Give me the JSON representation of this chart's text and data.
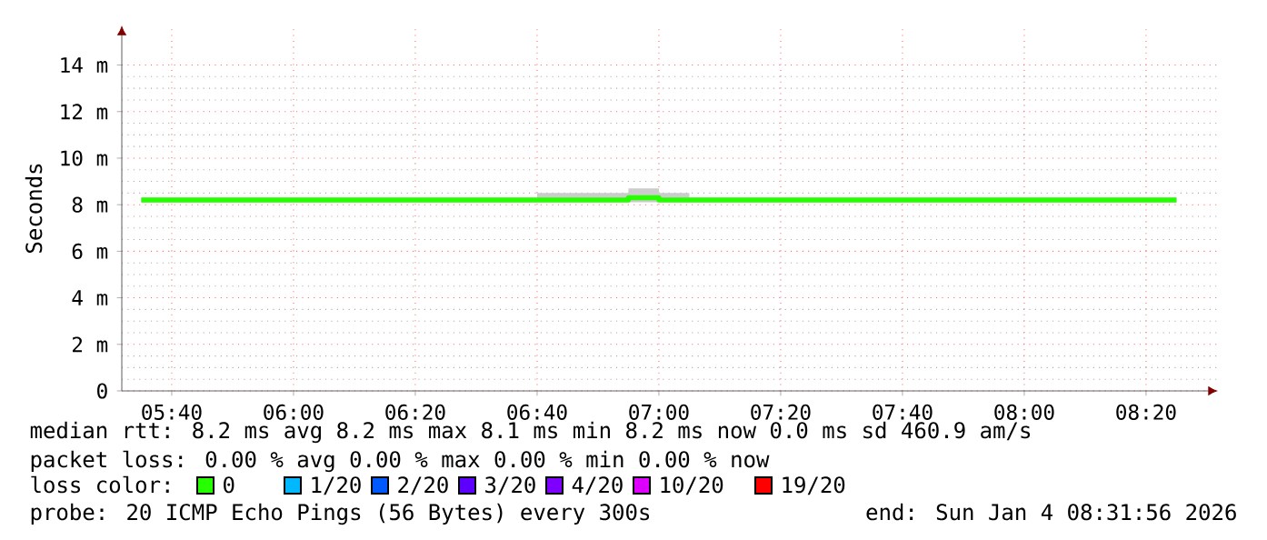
{
  "chart_data": {
    "type": "step",
    "ylabel": "Seconds",
    "x": [
      5.5833,
      5.6667,
      5.75,
      5.8333,
      5.9167,
      6,
      6.0833,
      6.1667,
      6.25,
      6.3333,
      6.4167,
      6.5,
      6.5833,
      6.6667,
      6.75,
      6.8333,
      6.9167,
      7,
      7.0833,
      7.1667,
      7.25,
      7.3333,
      7.4167,
      7.5,
      7.5833,
      7.6667,
      7.75,
      7.8333,
      7.9167,
      8,
      8.0833,
      8.1667,
      8.25,
      8.3333,
      8.4167
    ],
    "series": [
      {
        "name": "0",
        "color": "#26ff00",
        "values": [
          8.2,
          8.2,
          8.2,
          8.2,
          8.2,
          8.2,
          8.2,
          8.2,
          8.2,
          8.2,
          8.2,
          8.2,
          8.2,
          8.2,
          8.2,
          8.2,
          8.3,
          8.2,
          8.2,
          8.2,
          8.2,
          8.2,
          8.2,
          8.2,
          8.2,
          8.2,
          8.2,
          8.2,
          8.2,
          8.2,
          8.2,
          8.2,
          8.2,
          8.2,
          8.2
        ],
        "lower": [
          8.1,
          8.1,
          8.1,
          8.1,
          8.1,
          8.1,
          8.1,
          8.1,
          8.1,
          8.1,
          8.1,
          8.1,
          8.1,
          8.1,
          8.1,
          8.1,
          8.1,
          8.1,
          8.1,
          8.1,
          8.1,
          8.1,
          8.1,
          8.1,
          8.1,
          8.1,
          8.1,
          8.1,
          8.1,
          8.1,
          8.1,
          8.1,
          8.1,
          8.1,
          8.1
        ],
        "upper": [
          8.3,
          8.3,
          8.3,
          8.3,
          8.3,
          8.3,
          8.3,
          8.3,
          8.3,
          8.3,
          8.3,
          8.3,
          8.3,
          8.5,
          8.5,
          8.5,
          8.7,
          8.5,
          8.3,
          8.3,
          8.3,
          8.3,
          8.3,
          8.3,
          8.3,
          8.3,
          8.3,
          8.3,
          8.3,
          8.3,
          8.3,
          8.3,
          8.3,
          8.3,
          8.3
        ]
      },
      {
        "name": "1/20",
        "color": "#00b8ff",
        "values": [
          null,
          null,
          null,
          null,
          null,
          null,
          null,
          null,
          null,
          null,
          null,
          null,
          null,
          null,
          null,
          null,
          null,
          null,
          null,
          null,
          null,
          null,
          null,
          null,
          null,
          null,
          null,
          null,
          null,
          null,
          null,
          null,
          null,
          null,
          null
        ]
      },
      {
        "name": "2/20",
        "color": "#0059ff",
        "values": [
          null,
          null,
          null,
          null,
          null,
          null,
          null,
          null,
          null,
          null,
          null,
          null,
          null,
          null,
          null,
          null,
          null,
          null,
          null,
          null,
          null,
          null,
          null,
          null,
          null,
          null,
          null,
          null,
          null,
          null,
          null,
          null,
          null,
          null,
          null
        ]
      },
      {
        "name": "3/20",
        "color": "#5e00ff",
        "values": [
          null,
          null,
          null,
          null,
          null,
          null,
          null,
          null,
          null,
          null,
          null,
          null,
          null,
          null,
          null,
          null,
          null,
          null,
          null,
          null,
          null,
          null,
          null,
          null,
          null,
          null,
          null,
          null,
          null,
          null,
          null,
          null,
          null,
          null,
          null
        ]
      },
      {
        "name": "4/20",
        "color": "#7e00ff",
        "values": [
          null,
          null,
          null,
          null,
          null,
          null,
          null,
          null,
          null,
          null,
          null,
          null,
          null,
          null,
          null,
          null,
          null,
          null,
          null,
          null,
          null,
          null,
          null,
          null,
          null,
          null,
          null,
          null,
          null,
          null,
          null,
          null,
          null,
          null,
          null
        ]
      },
      {
        "name": "10/20",
        "color": "#dd00ff",
        "values": [
          null,
          null,
          null,
          null,
          null,
          null,
          null,
          null,
          null,
          null,
          null,
          null,
          null,
          null,
          null,
          null,
          null,
          null,
          null,
          null,
          null,
          null,
          null,
          null,
          null,
          null,
          null,
          null,
          null,
          null,
          null,
          null,
          null,
          null,
          null
        ]
      },
      {
        "name": "19/20",
        "color": "#ff0000",
        "values": [
          null,
          null,
          null,
          null,
          null,
          null,
          null,
          null,
          null,
          null,
          null,
          null,
          null,
          null,
          null,
          null,
          null,
          null,
          null,
          null,
          null,
          null,
          null,
          null,
          null,
          null,
          null,
          null,
          null,
          null,
          null,
          null,
          null,
          null,
          null
        ]
      }
    ],
    "xlim": [
      5.53,
      8.53
    ],
    "ylim": [
      0,
      15.7
    ],
    "xticks": [
      {
        "value": 5.6667,
        "label": "05:40"
      },
      {
        "value": 6,
        "label": "06:00"
      },
      {
        "value": 6.3333,
        "label": "06:20"
      },
      {
        "value": 6.6667,
        "label": "06:40"
      },
      {
        "value": 7,
        "label": "07:00"
      },
      {
        "value": 7.3333,
        "label": "07:20"
      },
      {
        "value": 7.6667,
        "label": "07:40"
      },
      {
        "value": 8,
        "label": "08:00"
      },
      {
        "value": 8.3333,
        "label": "08:20"
      }
    ],
    "yticks": [
      0,
      {
        "value": 2,
        "label": "2 m"
      },
      {
        "value": 4,
        "label": "4 m"
      },
      {
        "value": 6,
        "label": "6 m"
      },
      {
        "value": 8,
        "label": "8 m"
      },
      {
        "value": 10,
        "label": "10 m"
      },
      {
        "value": 12,
        "label": "12 m"
      },
      {
        "value": 14,
        "label": "14 m"
      }
    ],
    "grid": true,
    "legend": "bottom",
    "legend_title": "loss color:",
    "annotations": [
      "median rtt:  8.2 ms avg  8.2 ms max  8.1 ms min  8.2 ms now  0.0 ms sd  460.9   am/s",
      "packet loss: 0.00 % avg  0.00 % max  0.00 % min  0.00 % now",
      "probe:       20 ICMP Echo Pings (56 Bytes) every 300s",
      "end: Sun Jan  4 08:31:56 2026"
    ]
  }
}
